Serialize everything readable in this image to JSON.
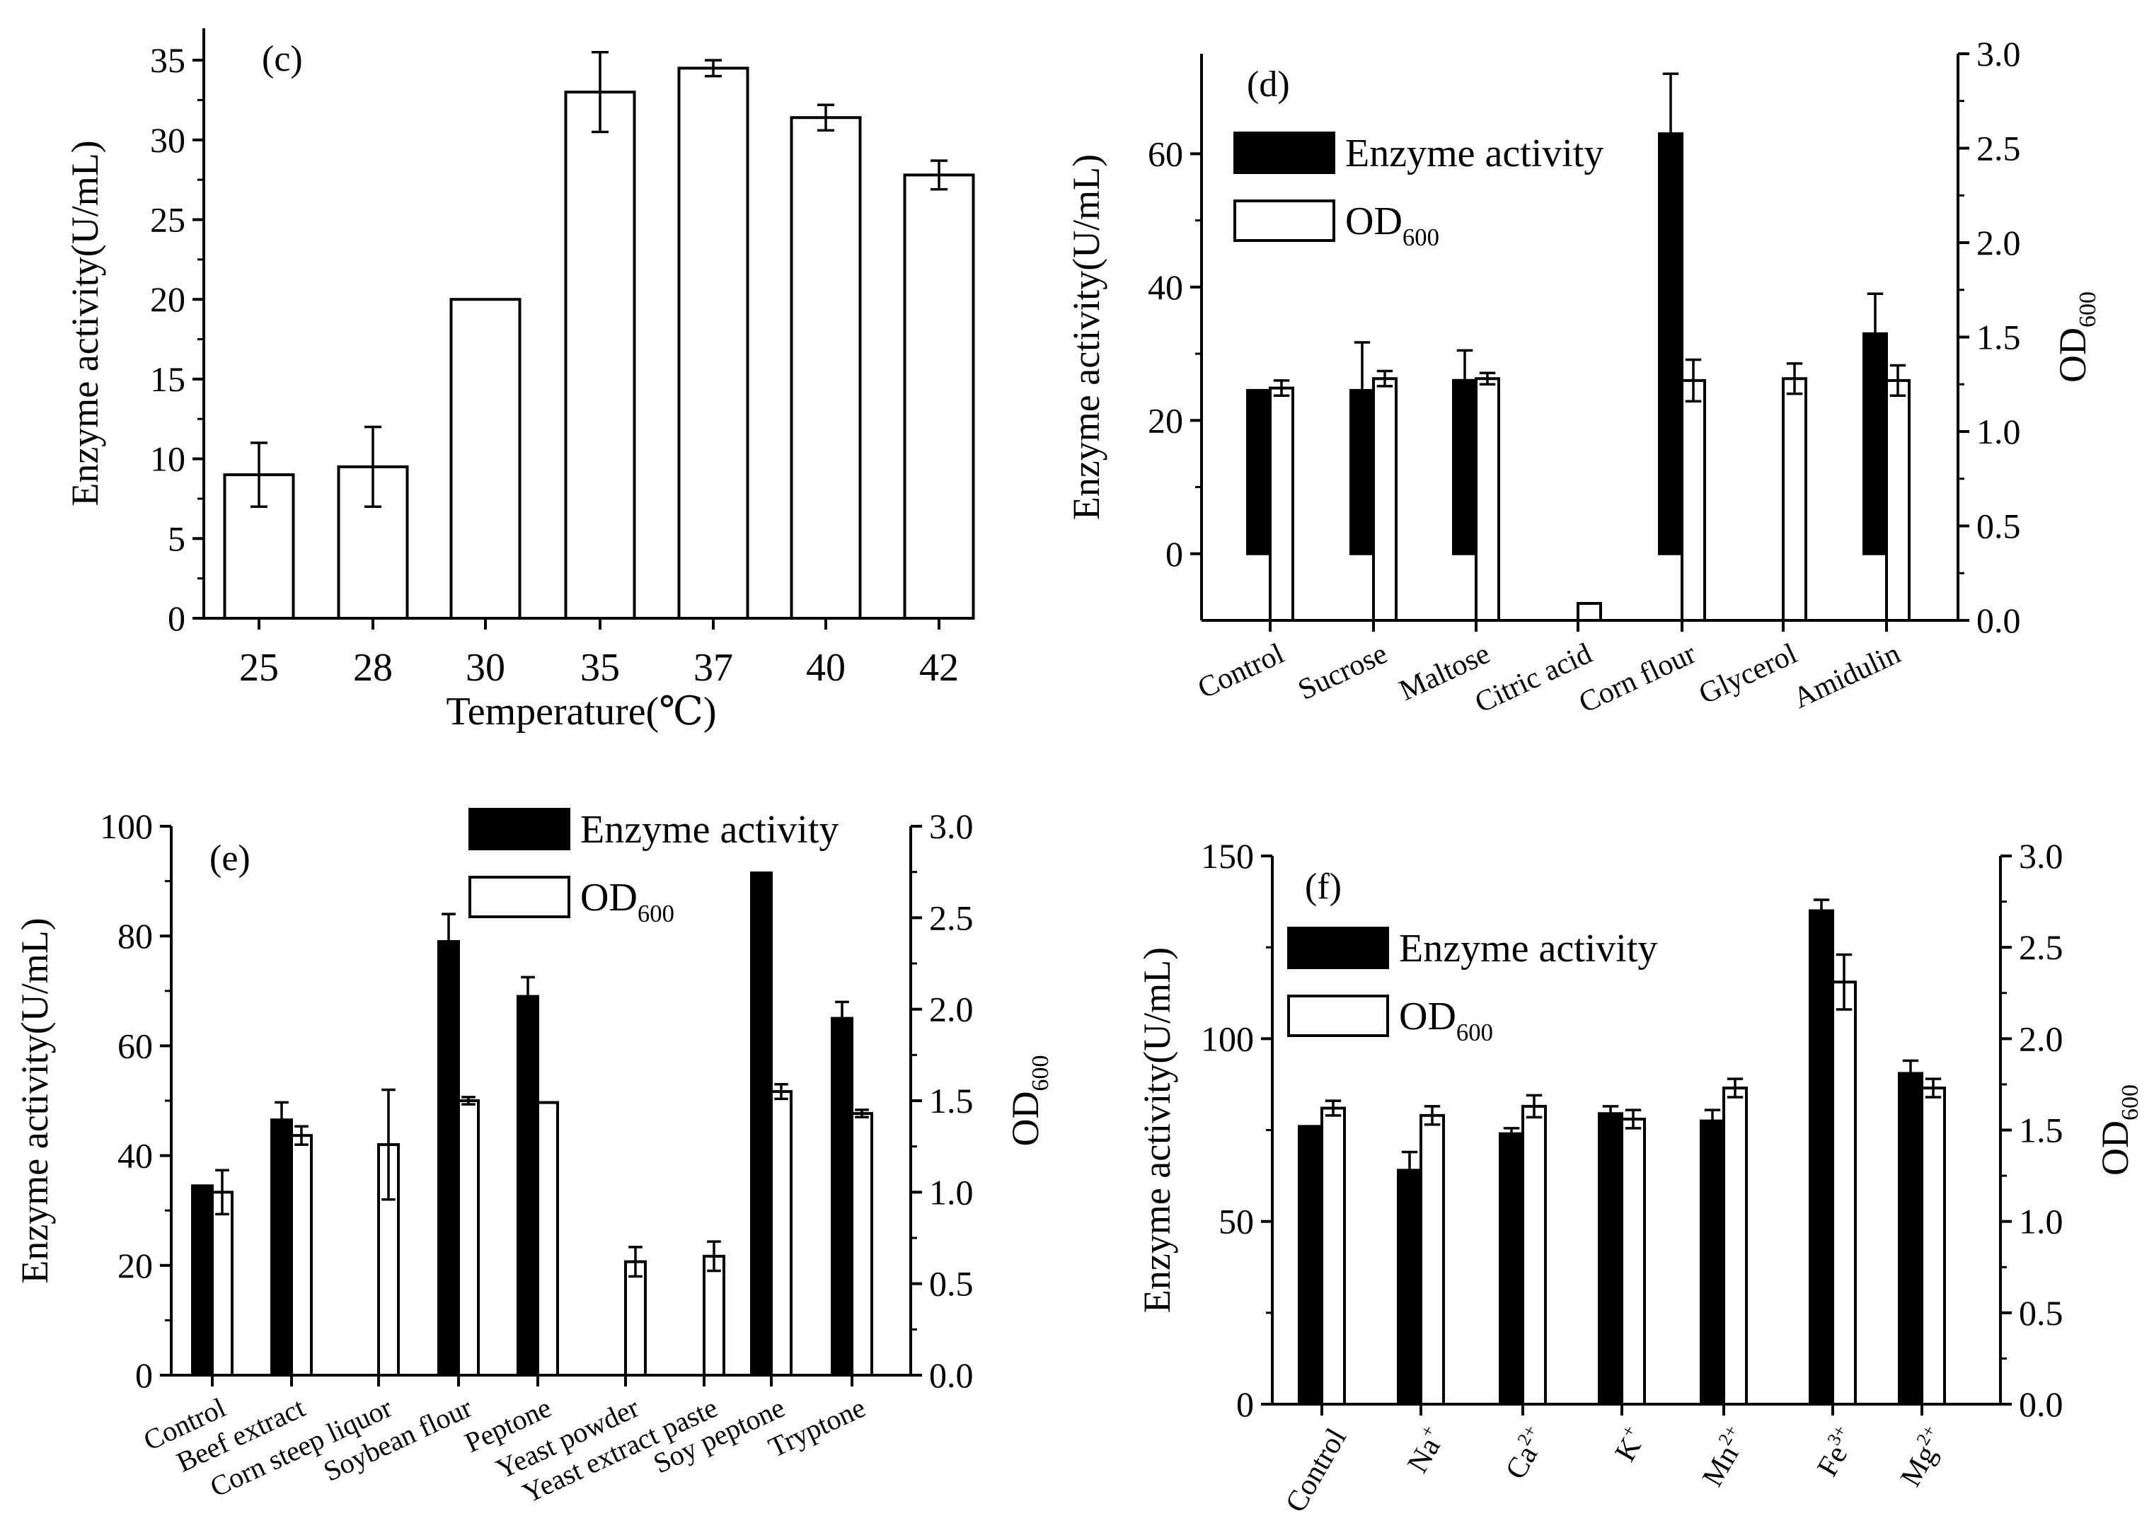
{
  "chart_data": [
    {
      "id": "c",
      "type": "bar",
      "panel_label": "(c)",
      "title": "",
      "xlabel": "Temperature(℃)",
      "ylabel": "Enzyme activity(U/mL)",
      "categories": [
        "25",
        "28",
        "30",
        "35",
        "37",
        "40",
        "42"
      ],
      "ylim": [
        0,
        37
      ],
      "yticks": [
        0,
        5,
        10,
        15,
        20,
        25,
        30,
        35
      ],
      "series": [
        {
          "name": "Enzyme activity",
          "axis": "left",
          "fill": "white",
          "values": [
            9.0,
            9.5,
            20.0,
            33.0,
            34.5,
            31.4,
            27.8
          ],
          "errors": [
            2.0,
            2.5,
            0,
            2.5,
            0.5,
            0.8,
            0.9
          ]
        }
      ],
      "legend": null
    },
    {
      "id": "d",
      "type": "bar",
      "panel_label": "(d)",
      "title": "",
      "xlabel": "",
      "ylabel": "Enzyme activity(U/mL)",
      "ylabel2": "OD",
      "ylabel2_sub": "600",
      "categories": [
        "Control",
        "Sucrose",
        "Maltose",
        "Citric acid",
        "Corn flour",
        "Glycerol",
        "Amidulin"
      ],
      "ylim": [
        -10,
        75
      ],
      "yticks": [
        0,
        20,
        40,
        60
      ],
      "y2lim": [
        0,
        3.0
      ],
      "y2ticks": [
        "0.0",
        "0.5",
        "1.0",
        "1.5",
        "2.0",
        "2.5",
        "3.0"
      ],
      "series": [
        {
          "name": "Enzyme activity",
          "axis": "left",
          "fill": "black",
          "values": [
            24.5,
            24.5,
            26.0,
            0,
            63.0,
            0,
            33.0
          ],
          "errors": [
            0,
            7.2,
            4.5,
            0,
            9.0,
            0,
            6.0
          ]
        },
        {
          "name": "OD600",
          "axis": "right",
          "fill": "white",
          "values": [
            1.23,
            1.28,
            1.28,
            0.09,
            1.27,
            1.28,
            1.27
          ],
          "errors": [
            0.04,
            0.04,
            0.03,
            0,
            0.11,
            0.08,
            0.08
          ]
        }
      ],
      "legend": {
        "position": "top-left",
        "entries": [
          "Enzyme activity",
          "OD"
        ],
        "sub": [
          "",
          "600"
        ]
      }
    },
    {
      "id": "e",
      "type": "bar",
      "panel_label": "(e)",
      "title": "",
      "xlabel": "",
      "ylabel": "Enzyme activity(U/mL)",
      "ylabel2": "OD",
      "ylabel2_sub": "600",
      "categories": [
        "Control",
        "Beef extract",
        "Corn steep liquor",
        "Soybean flour",
        "Peptone",
        "Yeast powder",
        "Yeast extract paste",
        "Soy peptone",
        "Tryptone"
      ],
      "ylim": [
        0,
        100
      ],
      "yticks": [
        0,
        20,
        40,
        60,
        80,
        100
      ],
      "y2lim": [
        0,
        3.0
      ],
      "y2ticks": [
        "0.0",
        "0.5",
        "1.0",
        "1.5",
        "2.0",
        "2.5",
        "3.0"
      ],
      "series": [
        {
          "name": "Enzyme activity",
          "axis": "left",
          "fill": "black",
          "values": [
            34.5,
            46.5,
            0,
            79.0,
            69.0,
            0,
            0,
            91.5,
            65.0
          ],
          "errors": [
            0,
            3.2,
            0,
            5.0,
            3.5,
            0,
            0,
            0,
            3.0
          ]
        },
        {
          "name": "OD600",
          "axis": "right",
          "fill": "white",
          "values": [
            1.0,
            1.31,
            1.26,
            1.5,
            1.49,
            0.62,
            0.65,
            1.55,
            1.43
          ],
          "errors": [
            0.12,
            0.05,
            0.3,
            0.02,
            0,
            0.08,
            0.08,
            0.04,
            0.02
          ]
        }
      ],
      "legend": {
        "position": "top-right",
        "entries": [
          "Enzyme activity",
          "OD"
        ],
        "sub": [
          "",
          "600"
        ]
      }
    },
    {
      "id": "f",
      "type": "bar",
      "panel_label": "(f)",
      "title": "",
      "xlabel": "",
      "ylabel": "Enzyme activity(U/mL)",
      "ylabel2": "OD",
      "ylabel2_sub": "600",
      "categories": [
        {
          "base": "Control",
          "sup": ""
        },
        {
          "base": "Na",
          "sup": "+"
        },
        {
          "base": "Ca",
          "sup": "2+"
        },
        {
          "base": "K",
          "sup": "+"
        },
        {
          "base": "Mn",
          "sup": "2+"
        },
        {
          "base": "Fe",
          "sup": "3+"
        },
        {
          "base": "Mg",
          "sup": "2+"
        }
      ],
      "ylim": [
        0,
        150
      ],
      "yticks": [
        0,
        50,
        100,
        150
      ],
      "y2lim": [
        0,
        3.0
      ],
      "y2ticks": [
        "0.0",
        "0.5",
        "1.0",
        "1.5",
        "2.0",
        "2.5",
        "3.0"
      ],
      "series": [
        {
          "name": "Enzyme activity",
          "axis": "left",
          "fill": "black",
          "values": [
            76.0,
            64.0,
            74.0,
            79.5,
            77.5,
            135.0,
            90.5
          ],
          "errors": [
            0,
            5.0,
            1.5,
            2.0,
            3.0,
            3.0,
            3.5
          ]
        },
        {
          "name": "OD600",
          "axis": "right",
          "fill": "white",
          "values": [
            1.62,
            1.58,
            1.63,
            1.56,
            1.73,
            2.31,
            1.73
          ],
          "errors": [
            0.04,
            0.05,
            0.06,
            0.05,
            0.05,
            0.15,
            0.05
          ]
        }
      ],
      "legend": {
        "position": "top-left",
        "entries": [
          "Enzyme activity",
          "OD"
        ],
        "sub": [
          "",
          "600"
        ]
      }
    }
  ]
}
